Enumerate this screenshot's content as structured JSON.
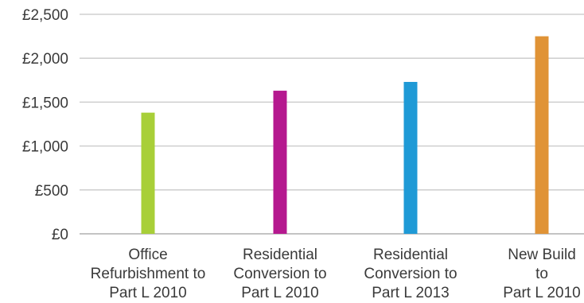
{
  "chart_data": {
    "type": "bar",
    "title": "",
    "xlabel": "",
    "ylabel": "",
    "categories": [
      [
        "Office",
        "Refurbishment to",
        "Part L 2010"
      ],
      [
        "Residential",
        "Conversion to",
        "Part L 2010"
      ],
      [
        "Residential",
        "Conversion to",
        "Part L 2013"
      ],
      [
        "New Build",
        "to",
        "Part L 2010"
      ]
    ],
    "values": [
      1380,
      1630,
      1730,
      2250
    ],
    "colors": [
      "#a8cf38",
      "#b5198f",
      "#1f9ad6",
      "#e09336"
    ],
    "ylim": [
      0,
      2500
    ],
    "yticks": [
      0,
      500,
      1000,
      1500,
      2000,
      2500
    ],
    "ytick_labels": [
      "£0",
      "£500",
      "£1,000",
      "£1,500",
      "£2,000",
      "£2,500"
    ],
    "grid": true,
    "legend": "none"
  }
}
